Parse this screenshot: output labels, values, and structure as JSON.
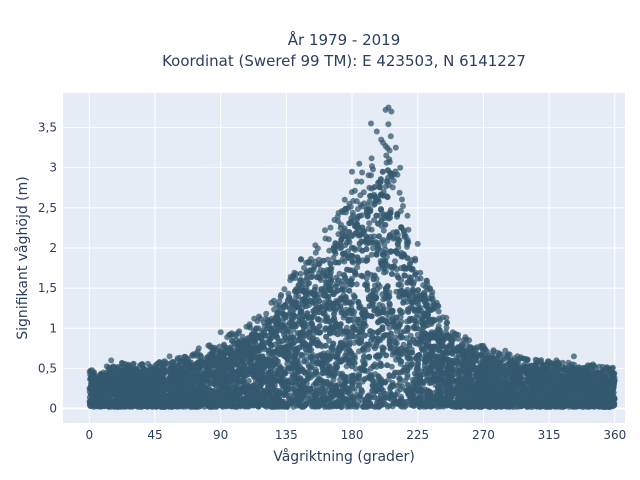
{
  "chart_data": {
    "type": "scatter",
    "title_line1": "År 1979 - 2019",
    "title_line2": "Koordinat (Sweref 99 TM): E 423503, N 6141227",
    "xlabel": "Vågriktning (grader)",
    "ylabel": "Signifikant våghöjd (m)",
    "xlim": [
      -18,
      367
    ],
    "ylim": [
      -0.18,
      3.93
    ],
    "xticks": [
      0,
      45,
      90,
      135,
      180,
      225,
      270,
      315,
      360
    ],
    "xtick_labels": [
      "0",
      "45",
      "90",
      "135",
      "180",
      "225",
      "270",
      "315",
      "360"
    ],
    "yticks": [
      0,
      0.5,
      1,
      1.5,
      2,
      2.5,
      3,
      3.5
    ],
    "ytick_labels": [
      "0",
      "0,5",
      "1",
      "1,5",
      "2",
      "2,5",
      "3",
      "3,5"
    ],
    "grid": true,
    "marker_color": "#34596f",
    "plot_background": "#e5ecf6",
    "envelope": {
      "direction": [
        0,
        20,
        45,
        70,
        90,
        110,
        130,
        150,
        165,
        180,
        190,
        200,
        205,
        210,
        220,
        235,
        250,
        270,
        300,
        330,
        360
      ],
      "max_height": [
        0.45,
        0.55,
        0.55,
        0.65,
        0.85,
        1.05,
        1.4,
        2.0,
        2.3,
        2.75,
        3.05,
        3.4,
        3.7,
        3.0,
        2.1,
        1.4,
        0.95,
        0.75,
        0.6,
        0.55,
        0.5
      ]
    },
    "outliers": [
      {
        "x": 90,
        "y": 0.95
      },
      {
        "x": 15,
        "y": 0.6
      },
      {
        "x": 30,
        "y": 0.55
      },
      {
        "x": 55,
        "y": 0.65
      },
      {
        "x": 75,
        "y": 0.75
      },
      {
        "x": 168,
        "y": 2.35
      },
      {
        "x": 175,
        "y": 2.6
      },
      {
        "x": 180,
        "y": 2.95
      },
      {
        "x": 185,
        "y": 3.05
      },
      {
        "x": 193,
        "y": 3.55
      },
      {
        "x": 197,
        "y": 3.45
      },
      {
        "x": 200,
        "y": 3.35
      },
      {
        "x": 203,
        "y": 3.72
      },
      {
        "x": 205,
        "y": 3.75
      },
      {
        "x": 207,
        "y": 3.7
      },
      {
        "x": 210,
        "y": 3.25
      },
      {
        "x": 213,
        "y": 3.0
      },
      {
        "x": 218,
        "y": 2.4
      },
      {
        "x": 225,
        "y": 2.05
      },
      {
        "x": 235,
        "y": 1.45
      },
      {
        "x": 270,
        "y": 0.78
      },
      {
        "x": 285,
        "y": 0.72
      },
      {
        "x": 300,
        "y": 0.6
      },
      {
        "x": 320,
        "y": 0.6
      },
      {
        "x": 332,
        "y": 0.65
      },
      {
        "x": 345,
        "y": 0.55
      },
      {
        "x": 358,
        "y": 0.5
      }
    ]
  }
}
